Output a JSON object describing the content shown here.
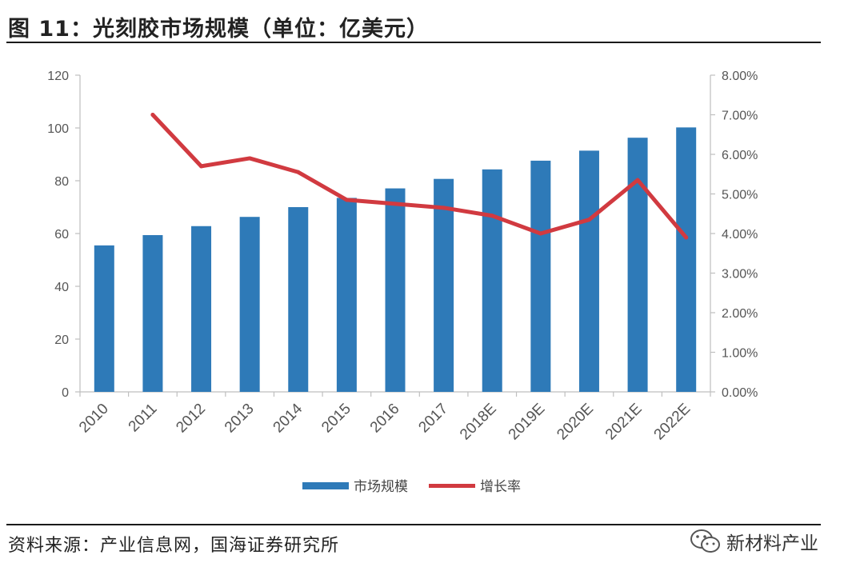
{
  "figure": {
    "title": "图 11：光刻胶市场规模（单位：亿美元）",
    "source": "资料来源：产业信息网，国海证券研究所",
    "watermark": "新材料产业"
  },
  "colors": {
    "bar": "#2e7ab8",
    "line": "#d13a40",
    "axis": "#bfbfbf",
    "tick_text": "#555555"
  },
  "chart_data": {
    "type": "bar",
    "categories": [
      "2010",
      "2011",
      "2012",
      "2013",
      "2014",
      "2015",
      "2016",
      "2017",
      "2018E",
      "2019E",
      "2020E",
      "2021E",
      "2022E"
    ],
    "series": [
      {
        "name": "市场规模",
        "type": "bar",
        "axis": "left",
        "values": [
          55.5,
          59.4,
          62.8,
          66.3,
          70.0,
          73.5,
          77.1,
          80.7,
          84.3,
          87.6,
          91.4,
          96.3,
          100.2
        ]
      },
      {
        "name": "增长率",
        "type": "line",
        "axis": "right",
        "values": [
          null,
          7.0,
          5.7,
          5.9,
          5.55,
          4.85,
          4.75,
          4.65,
          4.45,
          4.0,
          4.35,
          5.35,
          3.9
        ]
      }
    ],
    "ylim_left": [
      0,
      120
    ],
    "yticks_left": [
      "0",
      "20",
      "40",
      "60",
      "80",
      "100",
      "120"
    ],
    "ylim_right": [
      0,
      8
    ],
    "yticks_right": [
      "0.00%",
      "1.00%",
      "2.00%",
      "3.00%",
      "4.00%",
      "5.00%",
      "6.00%",
      "7.00%",
      "8.00%"
    ],
    "legend": {
      "position": "bottom",
      "labels": [
        "市场规模",
        "增长率"
      ]
    },
    "grid": false
  }
}
